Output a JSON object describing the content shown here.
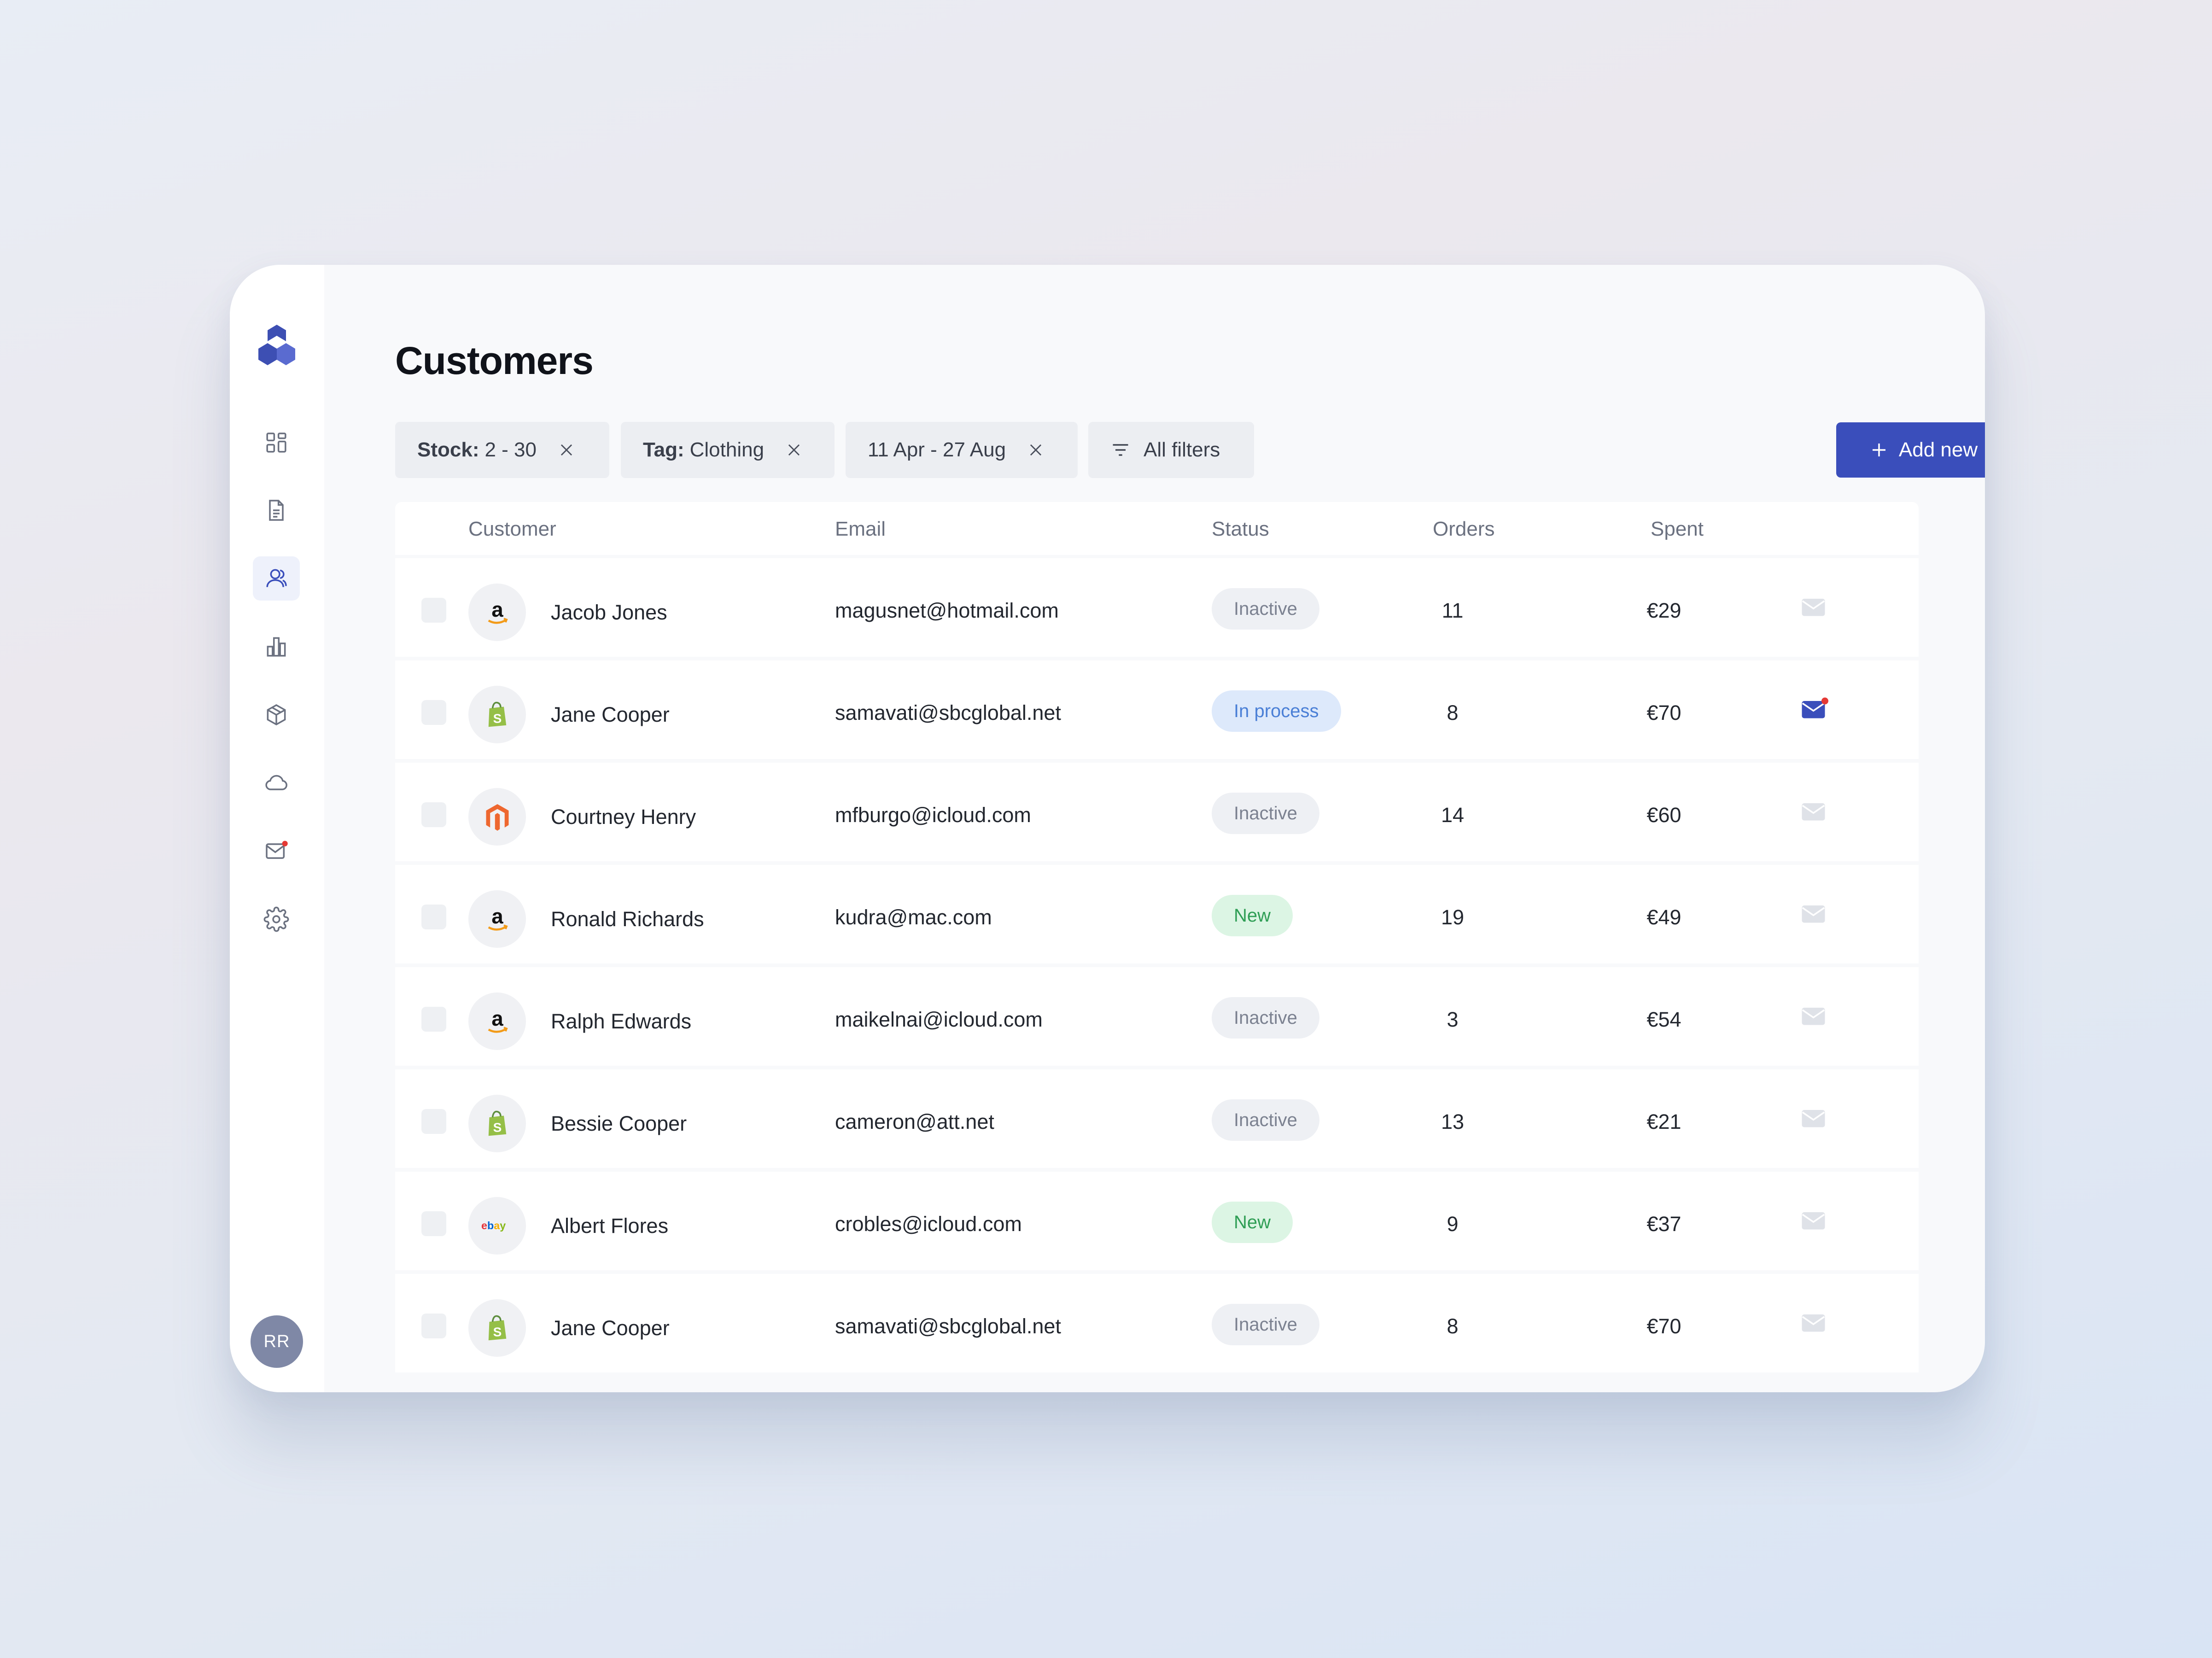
{
  "page": {
    "title": "Customers"
  },
  "user": {
    "initials": "RR"
  },
  "filters": [
    {
      "key": "Stock:",
      "value": "2 - 30"
    },
    {
      "key": "Tag:",
      "value": "Clothing"
    },
    {
      "key": "",
      "value": "11 Apr - 27 Aug"
    }
  ],
  "all_filters_label": "All filters",
  "add_new_label": "Add new",
  "table": {
    "headers": {
      "customer": "Customer",
      "email": "Email",
      "status": "Status",
      "orders": "Orders",
      "spent": "Spent"
    },
    "rows": [
      {
        "brand": "amazon",
        "name": "Jacob Jones",
        "email": "magusnet@hotmail.com",
        "status": "Inactive",
        "status_type": "inactive",
        "orders": "11",
        "spent": "€29",
        "mail_unread": false
      },
      {
        "brand": "shopify",
        "name": "Jane Cooper",
        "email": "samavati@sbcglobal.net",
        "status": "In process",
        "status_type": "process",
        "orders": "8",
        "spent": "€70",
        "mail_unread": true
      },
      {
        "brand": "magento",
        "name": "Courtney Henry",
        "email": "mfburgo@icloud.com",
        "status": "Inactive",
        "status_type": "inactive",
        "orders": "14",
        "spent": "€60",
        "mail_unread": false
      },
      {
        "brand": "amazon",
        "name": "Ronald Richards",
        "email": "kudra@mac.com",
        "status": "New",
        "status_type": "new",
        "orders": "19",
        "spent": "€49",
        "mail_unread": false
      },
      {
        "brand": "amazon",
        "name": "Ralph Edwards",
        "email": "maikelnai@icloud.com",
        "status": "Inactive",
        "status_type": "inactive",
        "orders": "3",
        "spent": "€54",
        "mail_unread": false
      },
      {
        "brand": "shopify",
        "name": "Bessie Cooper",
        "email": "cameron@att.net",
        "status": "Inactive",
        "status_type": "inactive",
        "orders": "13",
        "spent": "€21",
        "mail_unread": false
      },
      {
        "brand": "ebay",
        "name": "Albert Flores",
        "email": "crobles@icloud.com",
        "status": "New",
        "status_type": "new",
        "orders": "9",
        "spent": "€37",
        "mail_unread": false
      },
      {
        "brand": "shopify",
        "name": "Jane Cooper",
        "email": "samavati@sbcglobal.net",
        "status": "Inactive",
        "status_type": "inactive",
        "orders": "8",
        "spent": "€70",
        "mail_unread": false
      }
    ]
  },
  "icons": {
    "nav": [
      "dashboard-icon",
      "document-icon",
      "users-icon",
      "chart-icon",
      "box-icon",
      "cloud-icon",
      "mail-icon",
      "settings-icon"
    ],
    "brands": {
      "amazon": "amazon-logo",
      "shopify": "shopify-logo",
      "magento": "magento-logo",
      "ebay": "ebay-logo"
    }
  },
  "colors": {
    "accent": "#3a4ebb",
    "notification": "#e53935"
  }
}
